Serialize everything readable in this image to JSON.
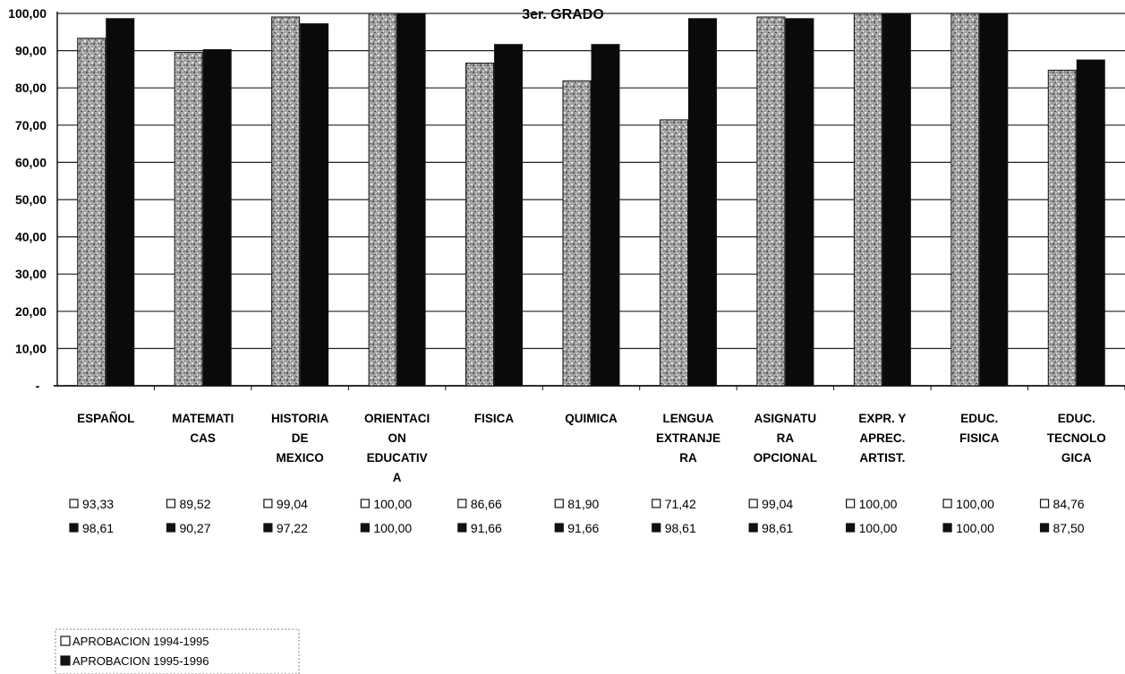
{
  "chart_data": {
    "type": "bar",
    "title": "3er. GRADO",
    "categories": [
      [
        "ESPAÑOL"
      ],
      [
        "MATEMATI",
        "CAS"
      ],
      [
        "HISTORIA",
        "DE",
        "MEXICO"
      ],
      [
        "ORIENTACI",
        "ON",
        "EDUCATIV",
        "A"
      ],
      [
        "FISICA"
      ],
      [
        "QUIMICA"
      ],
      [
        "LENGUA",
        "EXTRANJE",
        "RA"
      ],
      [
        "ASIGNATU",
        "RA",
        "OPCIONAL"
      ],
      [
        "EXPR. Y",
        "APREC.",
        "ARTIST."
      ],
      [
        "EDUC.",
        "FISICA"
      ],
      [
        "EDUC.",
        "TECNOLO",
        "GICA"
      ]
    ],
    "series": [
      {
        "name": "APROBACION 1994-1995",
        "values": [
          93.33,
          89.52,
          99.04,
          100.0,
          86.66,
          81.9,
          71.42,
          99.04,
          100.0,
          100.0,
          84.76
        ],
        "labels": [
          "93,33",
          "89,52",
          "99,04",
          "100,00",
          "86,66",
          "81,90",
          "71,42",
          "99,04",
          "100,00",
          "100,00",
          "84,76"
        ],
        "color": "#9a9a9a"
      },
      {
        "name": "APROBACION 1995-1996",
        "values": [
          98.61,
          90.27,
          97.22,
          100.0,
          91.66,
          91.66,
          98.61,
          98.61,
          100.0,
          100.0,
          87.5
        ],
        "labels": [
          "98,61",
          "90,27",
          "97,22",
          "100,00",
          "91,66",
          "91,66",
          "98,61",
          "98,61",
          "100,00",
          "100,00",
          "87,50"
        ],
        "color": "#0a0a0a"
      }
    ],
    "ylim": [
      0,
      100
    ],
    "yticks": [
      "-",
      "10,00",
      "20,00",
      "30,00",
      "40,00",
      "50,00",
      "60,00",
      "70,00",
      "80,00",
      "90,00",
      "100,00"
    ],
    "grid": true,
    "legend": "bottom-left"
  }
}
